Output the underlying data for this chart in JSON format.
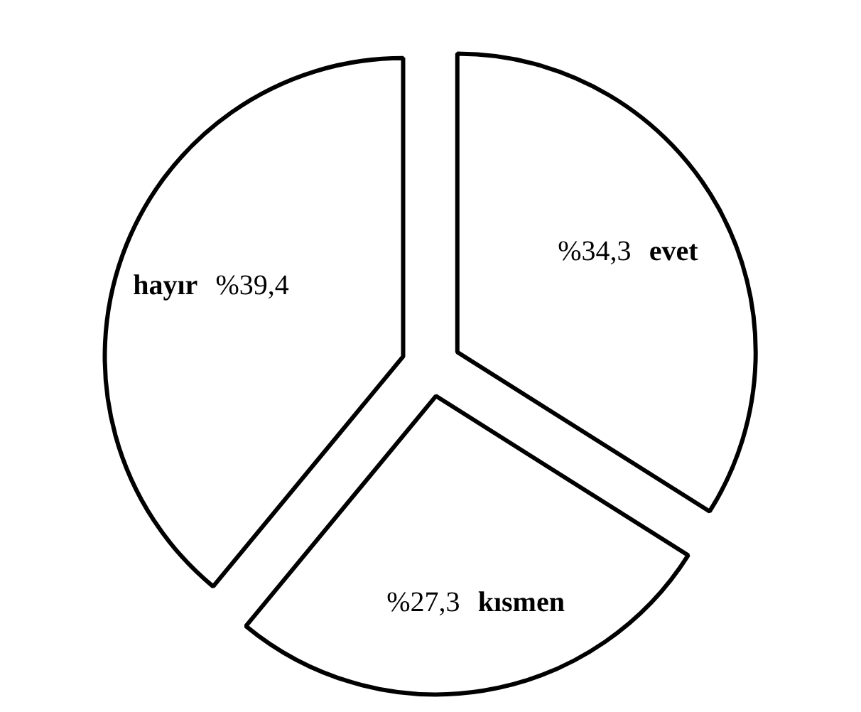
{
  "chart_data": {
    "type": "pie",
    "categories": [
      "evet",
      "kısmen",
      "hayır"
    ],
    "values": [
      34.3,
      27.3,
      39.4
    ],
    "colors": [
      "#ffffff",
      "#ffffff",
      "#ffffff"
    ],
    "value_labels": [
      "%34,3",
      "%27,3",
      "%39,4"
    ]
  }
}
